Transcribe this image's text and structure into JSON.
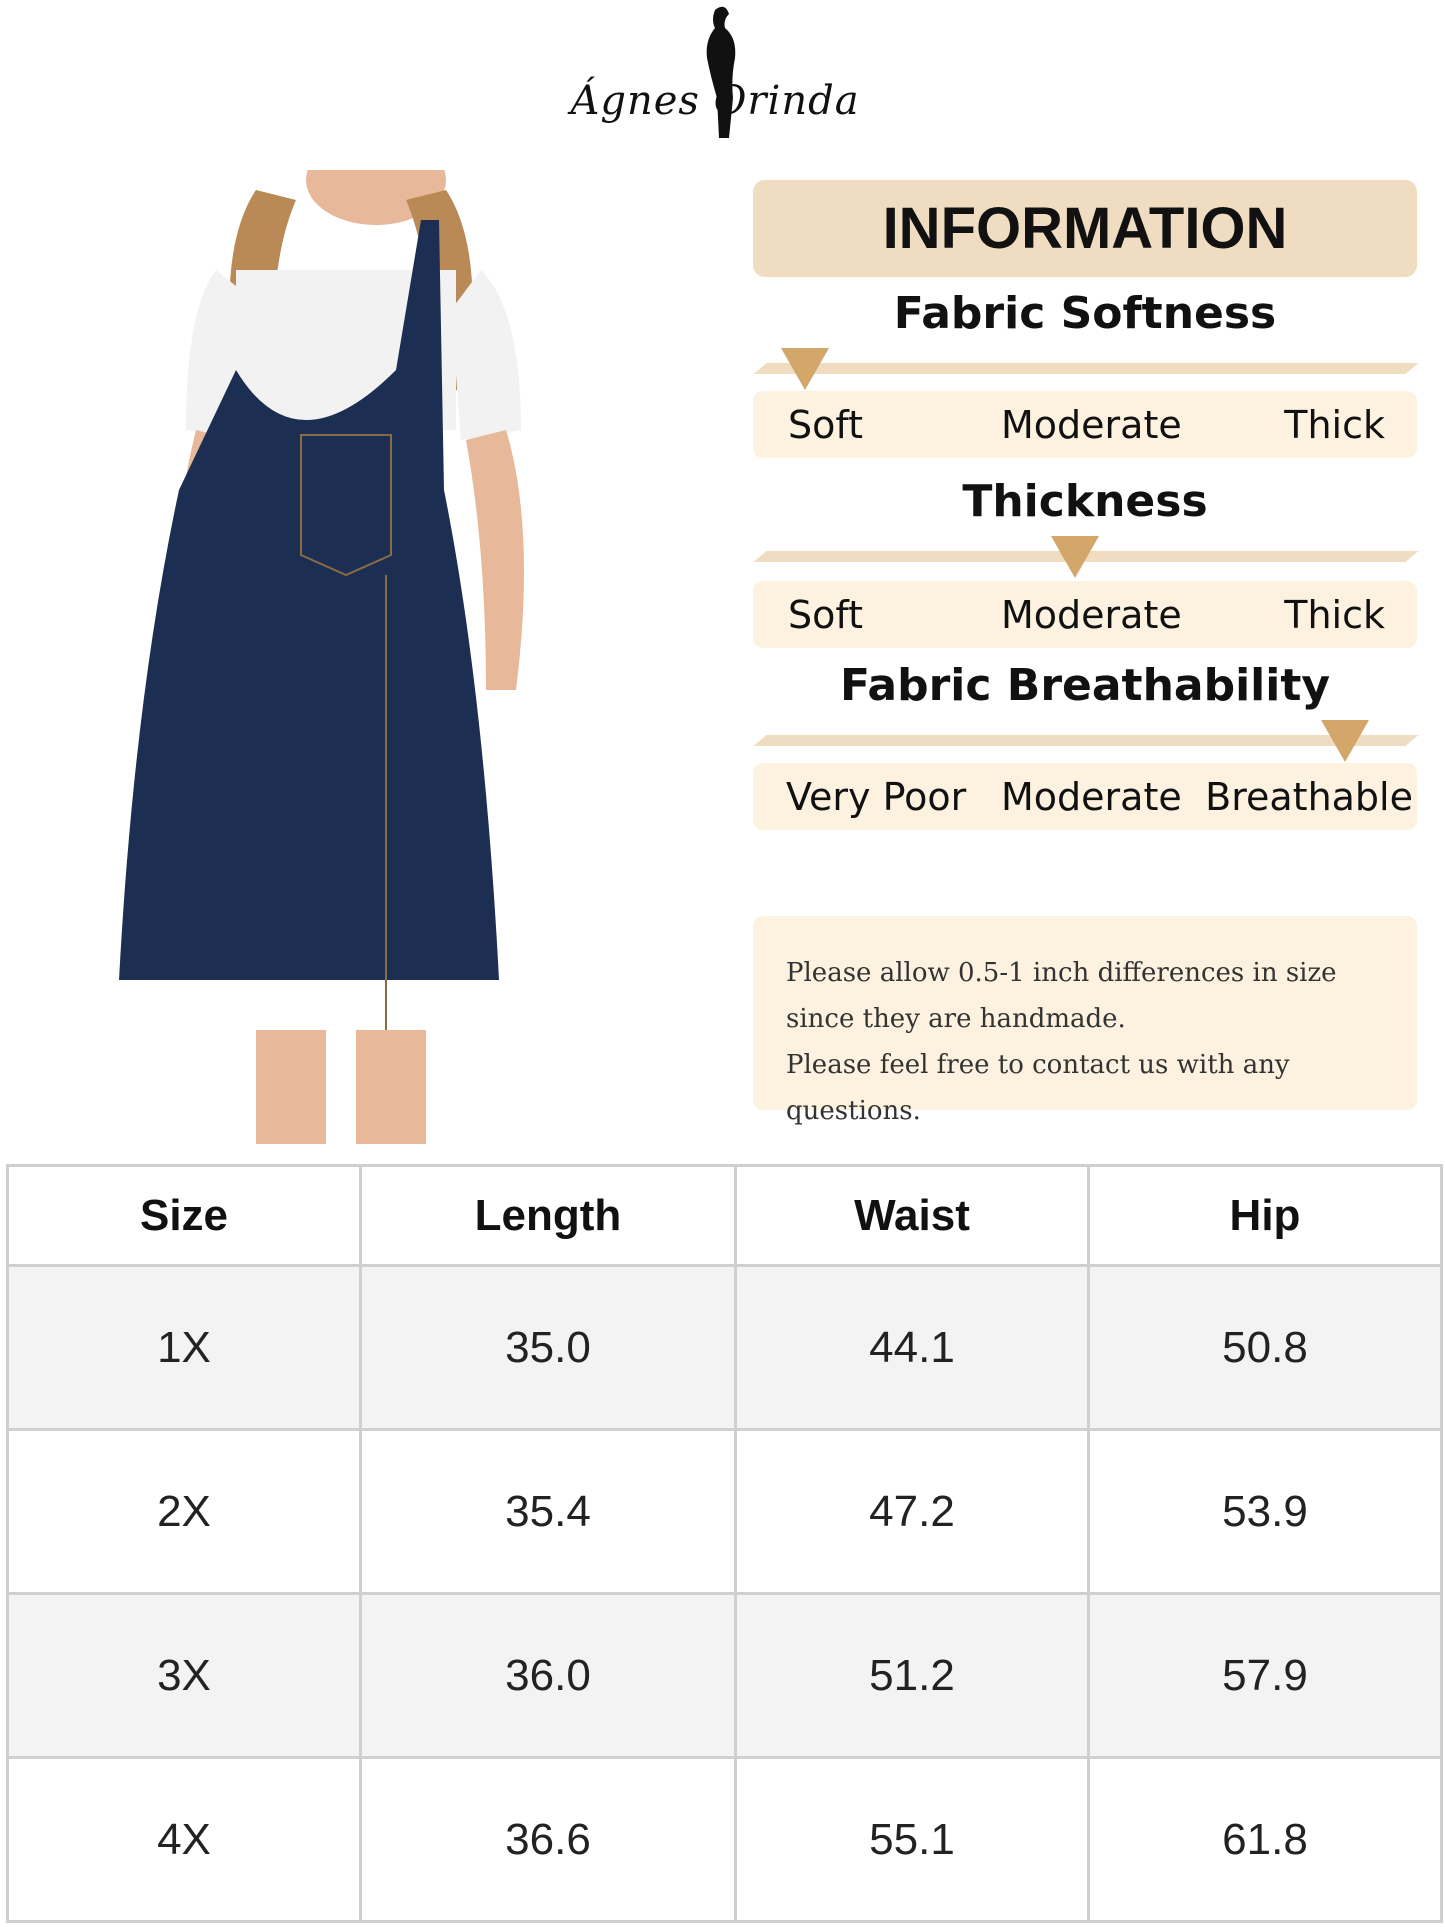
{
  "brand": {
    "logo_text": "Ágnes Orinda"
  },
  "info": {
    "header": "INFORMATION",
    "metrics": [
      {
        "title": "Fabric Softness",
        "labels": [
          "Soft",
          "Moderate",
          "Thick"
        ],
        "level": 0.05
      },
      {
        "title": "Thickness",
        "labels": [
          "Soft",
          "Moderate",
          "Thick"
        ],
        "level": 0.5
      },
      {
        "title": "Fabric Breathability",
        "labels": [
          "Very Poor",
          "Moderate",
          "Breathable"
        ],
        "level": 0.95
      }
    ],
    "note_lines": [
      "Please allow 0.5-1 inch differences in size",
      "since they are handmade.",
      "Please feel free to contact us with any questions."
    ],
    "marker_color": "#d3a66a"
  },
  "size_table": {
    "headers": [
      "Size",
      "Length",
      "Waist",
      "Hip"
    ],
    "rows": [
      [
        "1X",
        "35.0",
        "44.1",
        "50.8"
      ],
      [
        "2X",
        "35.4",
        "47.2",
        "53.9"
      ],
      [
        "3X",
        "36.0",
        "51.2",
        "57.9"
      ],
      [
        "4X",
        "36.6",
        "55.1",
        "61.8"
      ]
    ]
  }
}
